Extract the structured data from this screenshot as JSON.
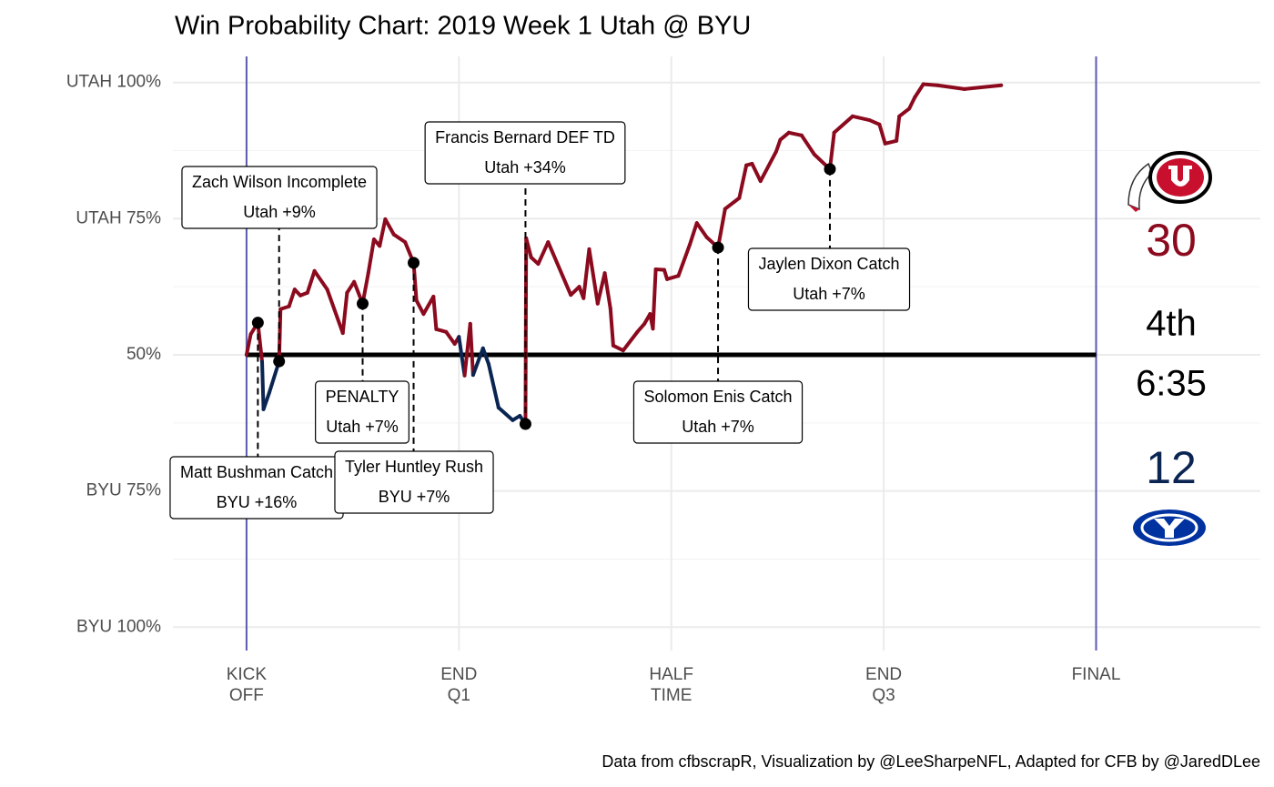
{
  "chart_data": {
    "type": "line",
    "title": "Win Probability Chart: 2019 Week 1 Utah @ BYU",
    "caption": "Data from cfbscrapR, Visualization by @LeeSharpeNFL, Adapted for CFB by @JaredDLee",
    "xlim": [
      -5.2,
      71.6
    ],
    "ylim": [
      -4.3,
      104.8
    ],
    "xticks": [
      {
        "value": 0,
        "label": "KICK\nOFF"
      },
      {
        "value": 15,
        "label": "END\nQ1"
      },
      {
        "value": 30,
        "label": "HALF\nTIME"
      },
      {
        "value": 45,
        "label": "END\nQ3"
      },
      {
        "value": 60,
        "label": "FINAL"
      }
    ],
    "yticks": [
      {
        "value": 0,
        "label": "BYU 100%"
      },
      {
        "value": 25,
        "label": "BYU 75%"
      },
      {
        "value": 50,
        "label": "50%"
      },
      {
        "value": 75,
        "label": "UTAH 75%"
      },
      {
        "value": 100,
        "label": "UTAH 100%"
      }
    ],
    "y_minor_gridlines": [
      12.5,
      37.5,
      62.5,
      87.5
    ],
    "grid": true,
    "period_lines": [
      0,
      60
    ],
    "period_line_color": "#5b5baf",
    "midline": 50,
    "color_above": "#8b0a1e",
    "color_below": "#0b2552",
    "x": [
      0,
      0.3,
      0.8,
      1.1,
      1.2,
      1.6,
      2.3,
      2.4,
      3.0,
      3.4,
      3.8,
      4.3,
      4.8,
      5.7,
      6.8,
      7.1,
      7.6,
      8.2,
      8.6,
      9.0,
      9.4,
      9.8,
      10.4,
      11.2,
      11.8,
      12.0,
      12.5,
      13.2,
      13.4,
      14.1,
      14.7,
      15.0,
      15.4,
      15.8,
      16.0,
      16.7,
      17.1,
      17.8,
      18.8,
      19.3,
      19.7,
      19.75,
      20.1,
      20.6,
      21.3,
      22.9,
      23.5,
      23.8,
      24.2,
      24.8,
      25.3,
      25.7,
      25.9,
      26.6,
      27.6,
      28.1,
      28.5,
      28.7,
      28.9,
      29.5,
      29.7,
      30.5,
      31.3,
      31.8,
      32.5,
      33.3,
      33.8,
      34.8,
      35.3,
      35.7,
      36.3,
      37.4,
      37.7,
      38.3,
      39.2,
      40.1,
      41.2,
      41.5,
      42.8,
      44.0,
      44.7,
      45.1,
      45.9,
      46.1,
      46.8,
      47.2,
      47.8,
      48.8,
      50.7,
      53.3
    ],
    "values": [
      50,
      53.8,
      55.9,
      48.7,
      40,
      43,
      48.8,
      58.4,
      58.9,
      62,
      60.9,
      61.4,
      65.4,
      62,
      54,
      61.4,
      63.4,
      59.4,
      65,
      71.2,
      70,
      74.9,
      72.1,
      70.7,
      66.9,
      60,
      57.5,
      60.7,
      54.7,
      54.2,
      52,
      53.3,
      46.2,
      55.7,
      46.3,
      51.2,
      48.3,
      40.3,
      38,
      38.8,
      37.3,
      71.4,
      67.9,
      66.7,
      70.7,
      61,
      62.5,
      60.4,
      69.4,
      59.4,
      65,
      58.5,
      51.7,
      50.8,
      54.2,
      55.7,
      57.5,
      54.8,
      65.7,
      65.6,
      63.9,
      64.5,
      70.2,
      74.2,
      71.6,
      69.7,
      76.8,
      78.8,
      84.8,
      85.1,
      81.9,
      87.3,
      89.5,
      90.8,
      90.3,
      86.8,
      84.1,
      90.8,
      93.8,
      93.1,
      92.3,
      88.8,
      89.3,
      93.8,
      95.2,
      97.3,
      99.7,
      99.5,
      98.8,
      99.5
    ],
    "annotations": [
      {
        "x": 0.8,
        "y": 55.9,
        "text": "Matt Bushman Catch",
        "change": "BYU +16%"
      },
      {
        "x": 2.3,
        "y": 48.8,
        "text": "Zach Wilson Incomplete",
        "change": "Utah +9%"
      },
      {
        "x": 8.2,
        "y": 59.4,
        "text": "PENALTY",
        "change": "Utah +7%"
      },
      {
        "x": 11.8,
        "y": 66.9,
        "text": "Tyler Huntley Rush",
        "change": "BYU +7%"
      },
      {
        "x": 19.7,
        "y": 37.3,
        "text": "Francis Bernard DEF TD",
        "change": "Utah +34%"
      },
      {
        "x": 33.3,
        "y": 69.7,
        "text": "Solomon Enis Catch",
        "change": "Utah +7%"
      },
      {
        "x": 41.2,
        "y": 84.1,
        "text": "Jaylen Dixon Catch",
        "change": "Utah +7%"
      }
    ],
    "scoreboard": {
      "utah_score": 30,
      "utah_color": "#8b0a1e",
      "period": "4th",
      "clock": "6:35",
      "byu_score": 12,
      "byu_color": "#0b2552"
    }
  }
}
